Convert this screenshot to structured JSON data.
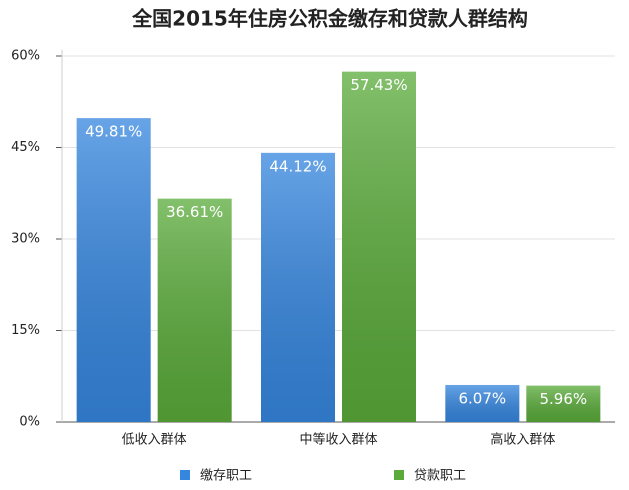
{
  "chart_data": {
    "type": "bar",
    "title": "全国2015年住房公积金缴存和贷款人群结构",
    "categories": [
      "低收入群体",
      "中等收入群体",
      "高收入群体"
    ],
    "series": [
      {
        "name": "缴存职工",
        "color": "#3586df",
        "values": [
          49.81,
          44.12,
          6.07
        ],
        "value_labels": [
          "49.81%",
          "44.12%",
          "6.07%"
        ]
      },
      {
        "name": "贷款职工",
        "color": "#5aab3a",
        "values": [
          36.61,
          57.43,
          5.96
        ],
        "value_labels": [
          "36.61%",
          "57.43%",
          "5.96%"
        ]
      }
    ],
    "ylim": [
      0,
      60
    ],
    "yticks": [
      {
        "value": 0,
        "label": "0%"
      },
      {
        "value": 15,
        "label": "15%"
      },
      {
        "value": 30,
        "label": "30%"
      },
      {
        "value": 45,
        "label": "45%"
      },
      {
        "value": 60,
        "label": "60%"
      }
    ],
    "grid": true,
    "legend": "bottom"
  }
}
